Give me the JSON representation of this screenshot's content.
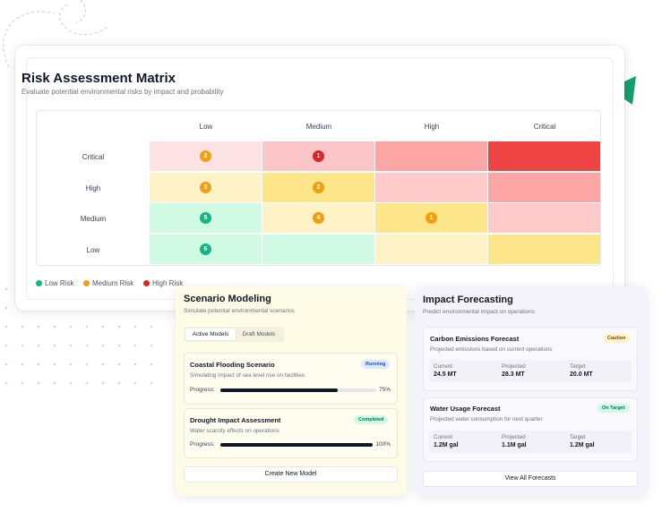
{
  "risk_matrix": {
    "title": "Risk Assessment Matrix",
    "subtitle": "Evaluate potential environmental risks by impact and probability",
    "columns": [
      "Low",
      "Medium",
      "High",
      "Critical"
    ],
    "rows": [
      "Critical",
      "High",
      "Medium",
      "Low"
    ],
    "cells": [
      [
        {
          "count": "2",
          "color": "#fde2e3",
          "badge": "amber"
        },
        {
          "count": "1",
          "color": "#fcc5c7",
          "badge": "red"
        },
        {
          "count": "",
          "color": "#fba5a5"
        },
        {
          "count": "",
          "color": "#ef4444"
        }
      ],
      [
        {
          "count": "3",
          "color": "#fef3c7",
          "badge": "amber"
        },
        {
          "count": "2",
          "color": "#fde68a",
          "badge": "amber"
        },
        {
          "count": "",
          "color": "#fecaca"
        },
        {
          "count": "",
          "color": "#fca5a5"
        }
      ],
      [
        {
          "count": "5",
          "color": "#d1fae5",
          "badge": "green"
        },
        {
          "count": "4",
          "color": "#fef3c7",
          "badge": "amber"
        },
        {
          "count": "1",
          "color": "#fde68a",
          "badge": "amber"
        },
        {
          "count": "",
          "color": "#fecaca"
        }
      ],
      [
        {
          "count": "6",
          "color": "#d1fae5",
          "badge": "green"
        },
        {
          "count": "",
          "color": "#d1fae5"
        },
        {
          "count": "",
          "color": "#fef3c7"
        },
        {
          "count": "",
          "color": "#fde68a"
        }
      ]
    ],
    "legend": [
      {
        "label": "Low Risk",
        "color": "#10b981"
      },
      {
        "label": "Medium Risk",
        "color": "#f59e0b"
      },
      {
        "label": "High Risk",
        "color": "#dc2626"
      }
    ]
  },
  "scenario": {
    "title": "Scenario Modeling",
    "subtitle": "Simulate potential environmental scenarios",
    "tabs": [
      "Active Models",
      "Draft Models"
    ],
    "active_tab": "Active Models",
    "models": [
      {
        "title": "Coastal Flooding Scenario",
        "status": "Running",
        "desc": "Simulating impact of sea level rise on facilities",
        "progress_label": "Progress:",
        "progress": 75,
        "progress_text": "75%"
      },
      {
        "title": "Drought Impact Assessment",
        "status": "Completed",
        "desc": "Water scarcity effects on operations",
        "progress_label": "Progress:",
        "progress": 100,
        "progress_text": "100%"
      }
    ],
    "create_button": "Create New Model"
  },
  "impact": {
    "title": "Impact Forecasting",
    "subtitle": "Predict environmental impact on operations",
    "forecasts": [
      {
        "title": "Carbon Emissions Forecast",
        "status": "Caution",
        "desc": "Projected emissions based on current operations",
        "stats": [
          {
            "label": "Current",
            "value": "24.5 MT"
          },
          {
            "label": "Projected",
            "value": "28.3 MT"
          },
          {
            "label": "Target",
            "value": "20.0 MT"
          }
        ]
      },
      {
        "title": "Water Usage Forecast",
        "status": "On Target",
        "desc": "Projected water consumption for next quarter",
        "stats": [
          {
            "label": "Current",
            "value": "1.2M gal"
          },
          {
            "label": "Projected",
            "value": "1.1M gal"
          },
          {
            "label": "Target",
            "value": "1.2M gal"
          }
        ]
      }
    ],
    "view_button": "View All Forecasts"
  },
  "colors": {
    "accent_triangle": "#16a06a"
  }
}
